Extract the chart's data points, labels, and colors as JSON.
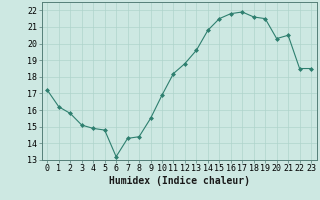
{
  "x": [
    0,
    1,
    2,
    3,
    4,
    5,
    6,
    7,
    8,
    9,
    10,
    11,
    12,
    13,
    14,
    15,
    16,
    17,
    18,
    19,
    20,
    21,
    22,
    23
  ],
  "y": [
    17.2,
    16.2,
    15.8,
    15.1,
    14.9,
    14.8,
    13.2,
    14.3,
    14.4,
    15.5,
    16.9,
    18.2,
    18.8,
    19.6,
    20.8,
    21.5,
    21.8,
    21.9,
    21.6,
    21.5,
    20.3,
    20.5,
    18.5,
    18.5
  ],
  "xlabel": "Humidex (Indice chaleur)",
  "ylim": [
    13,
    22.5
  ],
  "xlim": [
    -0.5,
    23.5
  ],
  "yticks": [
    13,
    14,
    15,
    16,
    17,
    18,
    19,
    20,
    21,
    22
  ],
  "xticks": [
    0,
    1,
    2,
    3,
    4,
    5,
    6,
    7,
    8,
    9,
    10,
    11,
    12,
    13,
    14,
    15,
    16,
    17,
    18,
    19,
    20,
    21,
    22,
    23
  ],
  "line_color": "#2e7f6f",
  "marker_color": "#2e7f6f",
  "bg_color": "#cde8e2",
  "grid_color": "#afd4cc",
  "xlabel_fontsize": 7,
  "tick_fontsize": 6
}
